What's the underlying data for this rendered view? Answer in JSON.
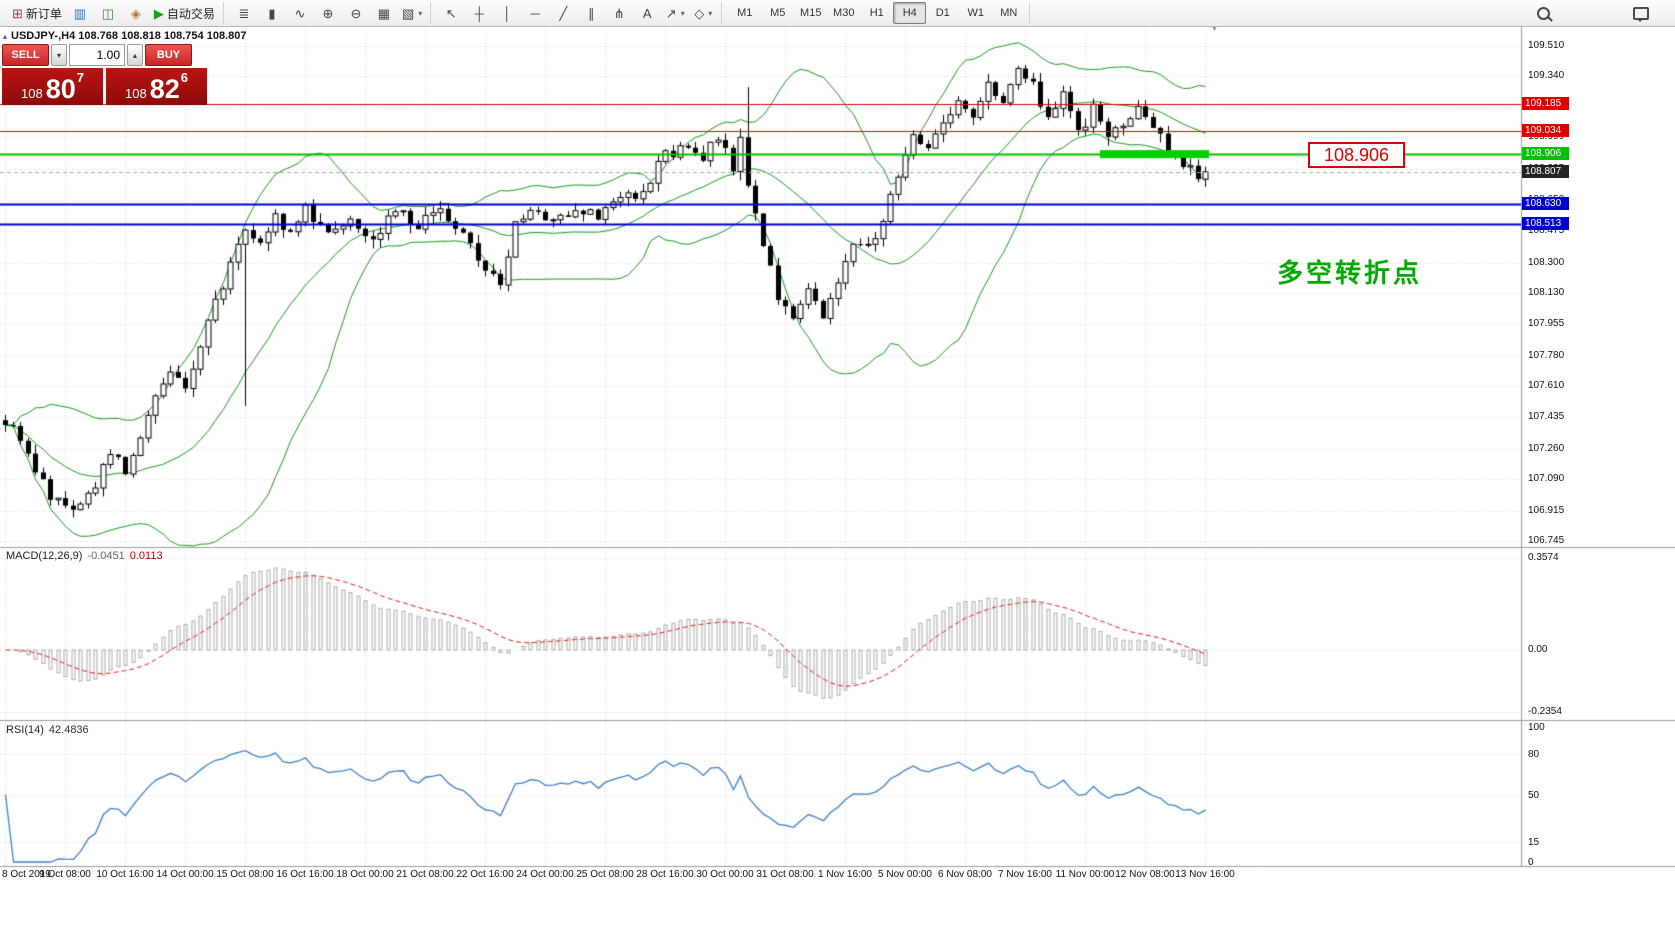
{
  "toolbar": {
    "caret_glyph": "▾",
    "groups": [
      {
        "name": "trade-group",
        "items": [
          {
            "name": "new-order-button",
            "glyph": "⊞",
            "glyph_color": "#c03030",
            "label": "新订单"
          },
          {
            "name": "market-watch-button",
            "glyph": "▥",
            "glyph_color": "#2e6fb0"
          },
          {
            "name": "data-window-button",
            "glyph": "◫",
            "glyph_color": "#3a8a3a"
          },
          {
            "name": "navigator-button",
            "glyph": "◈",
            "glyph_color": "#b08030"
          },
          {
            "name": "auto-trading-button",
            "glyph": "▶",
            "glyph_color": "#18a018",
            "label": "自动交易"
          }
        ]
      },
      {
        "name": "chart-control-group",
        "items": [
          {
            "name": "bar-chart-button",
            "glyph": "≣"
          },
          {
            "name": "candlestick-chart-button",
            "glyph": "▮"
          },
          {
            "name": "line-chart-button",
            "glyph": "∿"
          },
          {
            "name": "zoom-in-button",
            "glyph": "⊕"
          },
          {
            "name": "zoom-out-button",
            "glyph": "⊖"
          },
          {
            "name": "tile-windows-button",
            "glyph": "▦"
          },
          {
            "name": "chart-profiles-button",
            "glyph": "▧",
            "caret": true
          }
        ]
      },
      {
        "name": "drawing-tools-group",
        "items": [
          {
            "name": "cursor-button",
            "glyph": "↖"
          },
          {
            "name": "crosshair-button",
            "glyph": "┼"
          },
          {
            "name": "vertical-line-button",
            "glyph": "│"
          },
          {
            "name": "horizontal-line-button",
            "glyph": "─"
          },
          {
            "name": "trendline-button",
            "glyph": "╱"
          },
          {
            "name": "channel-button",
            "glyph": "∥"
          },
          {
            "name": "fibonacci-button",
            "glyph": "⋔"
          },
          {
            "name": "text-button",
            "glyph": "A"
          },
          {
            "name": "arrows-button",
            "glyph": "↗",
            "caret": true
          },
          {
            "name": "shapes-button",
            "glyph": "◇",
            "caret": true
          }
        ]
      },
      {
        "name": "timeframe-group",
        "items": [
          {
            "name": "tf-m1",
            "label": "M1",
            "tf": true
          },
          {
            "name": "tf-m5",
            "label": "M5",
            "tf": true
          },
          {
            "name": "tf-m15",
            "label": "M15",
            "tf": true
          },
          {
            "name": "tf-m30",
            "label": "M30",
            "tf": true
          },
          {
            "name": "tf-h1",
            "label": "H1",
            "tf": true
          },
          {
            "name": "tf-h4",
            "label": "H4",
            "tf": true,
            "active": true
          },
          {
            "name": "tf-d1",
            "label": "D1",
            "tf": true
          },
          {
            "name": "tf-w1",
            "label": "W1",
            "tf": true
          },
          {
            "name": "tf-mn",
            "label": "MN",
            "tf": true
          }
        ]
      },
      {
        "name": "right-group",
        "right": true,
        "items": [
          {
            "name": "search-button",
            "css": "mag"
          },
          {
            "name": "chat-button",
            "css": "chat"
          }
        ]
      }
    ]
  },
  "chart": {
    "expand_glyph": "▴",
    "ohlc_line": "USDJPY-,H4  108.768 108.818 108.754 108.807",
    "shift_marker_glyph": "▼"
  },
  "trade_panel": {
    "sell_label": "SELL",
    "buy_label": "BUY",
    "volume": "1.00",
    "down_glyph": "▾",
    "up_glyph": "▴",
    "sell_price_head": "108",
    "sell_price_big": "80",
    "sell_price_sup": "7",
    "buy_price_head": "108",
    "buy_price_big": "82",
    "buy_price_sup": "6"
  },
  "annotation": {
    "text": "多空转折点",
    "color": "#00a800"
  },
  "price_box": {
    "text": "108.906"
  },
  "axis": {
    "ticks": [
      [
        "109.510",
        109.51
      ],
      [
        "109.340",
        109.34
      ],
      [
        "109.170",
        109.17
      ],
      [
        "108.999",
        108.999
      ],
      [
        "108.825",
        108.825
      ],
      [
        "108.650",
        108.65
      ],
      [
        "108.475",
        108.475
      ],
      [
        "108.300",
        108.3
      ],
      [
        "108.130",
        108.13
      ],
      [
        "107.955",
        107.955
      ],
      [
        "107.780",
        107.78
      ],
      [
        "107.610",
        107.61
      ],
      [
        "107.435",
        107.435
      ],
      [
        "107.260",
        107.26
      ],
      [
        "107.090",
        107.09
      ],
      [
        "106.915",
        106.915
      ],
      [
        "106.745",
        106.745
      ]
    ]
  },
  "macd_panel": {
    "name": "MACD(12,26,9)",
    "value1": "-0.0451",
    "value2": "0.0113",
    "scale": [
      [
        "0.3574",
        0.3574
      ],
      [
        "0.00",
        0
      ],
      [
        "-0.2354",
        -0.2354
      ]
    ]
  },
  "rsi_panel": {
    "name": "RSI(14)",
    "value": "42.4836",
    "scale": [
      [
        "100",
        100
      ],
      [
        "80",
        80
      ],
      [
        "50",
        50
      ],
      [
        "15",
        15
      ],
      [
        "0",
        0
      ]
    ]
  },
  "chart_data": {
    "type": "candlestick",
    "symbol": "USDJPY-",
    "timeframe": "H4",
    "ohlc": {
      "open": 108.768,
      "high": 108.818,
      "low": 108.754,
      "close": 108.807
    },
    "ylim": [
      106.745,
      109.51
    ],
    "bars": 161,
    "bars_per_date": 8,
    "dates": [
      "8 Oct 2019",
      "9 Oct 08:00",
      "10 Oct 16:00",
      "14 Oct 00:00",
      "15 Oct 08:00",
      "16 Oct 16:00",
      "18 Oct 00:00",
      "21 Oct 08:00",
      "22 Oct 16:00",
      "24 Oct 00:00",
      "25 Oct 08:00",
      "28 Oct 16:00",
      "30 Oct 00:00",
      "31 Oct 08:00",
      "1 Nov 16:00",
      "5 Nov 00:00",
      "6 Nov 08:00",
      "7 Nov 16:00",
      "11 Nov 00:00",
      "12 Nov 08:00",
      "13 Nov 16:00"
    ],
    "price_anchors": [
      [
        0,
        107.42
      ],
      [
        3,
        107.22
      ],
      [
        6,
        107.0
      ],
      [
        9,
        106.9
      ],
      [
        12,
        107.06
      ],
      [
        14,
        107.25
      ],
      [
        16,
        107.12
      ],
      [
        19,
        107.45
      ],
      [
        22,
        107.7
      ],
      [
        24,
        107.58
      ],
      [
        26,
        107.85
      ],
      [
        28,
        108.08
      ],
      [
        30,
        108.28
      ],
      [
        32,
        108.5
      ],
      [
        34,
        108.42
      ],
      [
        36,
        108.56
      ],
      [
        38,
        108.46
      ],
      [
        40,
        108.6
      ],
      [
        43,
        108.48
      ],
      [
        46,
        108.56
      ],
      [
        49,
        108.44
      ],
      [
        52,
        108.6
      ],
      [
        55,
        108.5
      ],
      [
        58,
        108.6
      ],
      [
        61,
        108.45
      ],
      [
        64,
        108.25
      ],
      [
        66,
        108.2
      ],
      [
        68,
        108.5
      ],
      [
        70,
        108.6
      ],
      [
        73,
        108.52
      ],
      [
        76,
        108.62
      ],
      [
        79,
        108.55
      ],
      [
        82,
        108.66
      ],
      [
        85,
        108.7
      ],
      [
        88,
        108.9
      ],
      [
        91,
        108.96
      ],
      [
        93,
        108.88
      ],
      [
        95,
        109.0
      ],
      [
        97,
        108.82
      ],
      [
        98,
        109.02
      ],
      [
        99,
        108.72
      ],
      [
        101,
        108.42
      ],
      [
        103,
        108.1
      ],
      [
        105,
        107.98
      ],
      [
        107,
        108.12
      ],
      [
        109,
        108.0
      ],
      [
        111,
        108.22
      ],
      [
        113,
        108.42
      ],
      [
        115,
        108.38
      ],
      [
        117,
        108.52
      ],
      [
        119,
        108.8
      ],
      [
        121,
        109.02
      ],
      [
        123,
        108.95
      ],
      [
        125,
        109.08
      ],
      [
        127,
        109.2
      ],
      [
        129,
        109.1
      ],
      [
        131,
        109.28
      ],
      [
        133,
        109.22
      ],
      [
        135,
        109.4
      ],
      [
        137,
        109.3
      ],
      [
        139,
        109.08
      ],
      [
        141,
        109.22
      ],
      [
        143,
        109.02
      ],
      [
        145,
        109.15
      ],
      [
        147,
        108.98
      ],
      [
        149,
        109.08
      ],
      [
        151,
        109.18
      ],
      [
        153,
        109.05
      ],
      [
        155,
        108.95
      ],
      [
        157,
        108.85
      ],
      [
        159,
        108.8
      ],
      [
        160,
        108.807
      ]
    ],
    "spikes": [
      {
        "bar": 32,
        "low": 107.5
      },
      {
        "bar": 99,
        "high": 109.28
      }
    ],
    "indicators": {
      "bollinger": {
        "period": 20,
        "deviation": 2,
        "color": "#18991e"
      },
      "macd": {
        "fast": 12,
        "slow": 26,
        "signal": 9,
        "histogram_color": "#ababab",
        "signal_color": "#dd2222",
        "range": [
          -0.2354,
          0.3574
        ]
      },
      "rsi": {
        "period": 14,
        "color": "#3f7fce",
        "levels": [
          80,
          50,
          15
        ],
        "range": [
          0,
          100
        ],
        "current": 42.4836
      }
    },
    "levels": [
      {
        "price": 109.185,
        "label": "109.185",
        "color": "#dd0000",
        "width": 1,
        "style": "solid"
      },
      {
        "price": 109.034,
        "label": "109.034",
        "color": "#dd0000",
        "width": 1,
        "style": "solid"
      },
      {
        "price": 108.906,
        "label": "108.906",
        "color": "#00c000",
        "width": 2,
        "style": "solid"
      },
      {
        "price": 108.807,
        "label": "108.807",
        "color": "#222222",
        "line_color": "#aaaaaa",
        "width": 1,
        "style": "dashed"
      },
      {
        "price": 108.63,
        "label": "108.630",
        "color": "#0000cc",
        "width": 2,
        "style": "solid"
      },
      {
        "price": 108.513,
        "label": "108.513",
        "color": "#0000cc",
        "width": 2,
        "style": "solid"
      }
    ],
    "highlight": {
      "price": 108.906,
      "from_bar": 146,
      "to_bar": 160,
      "color": "#00d000",
      "thickness": 8
    },
    "current_price": 108.807
  }
}
